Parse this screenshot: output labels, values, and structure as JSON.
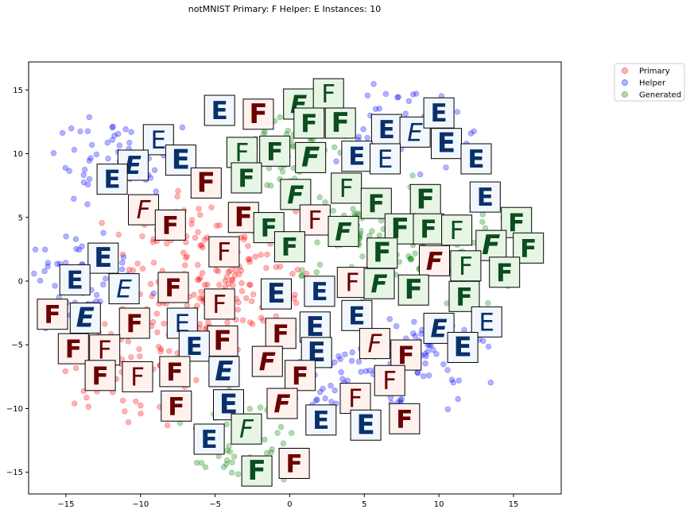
{
  "chart_data": {
    "type": "scatter",
    "title": "notMNIST Primary: F Helper: E Instances: 10",
    "xlabel": "",
    "ylabel": "",
    "xlim": [
      -17.5,
      18.2
    ],
    "ylim": [
      -16.7,
      17.2
    ],
    "xticks": [
      -15,
      -10,
      -5,
      0,
      5,
      10,
      15
    ],
    "yticks": [
      15,
      10,
      5,
      0,
      -5,
      -10,
      -15
    ],
    "grid": false,
    "legend_position": "outside-top-right",
    "colors": {
      "Primary": "#ff0000",
      "Helper": "#0000ff",
      "Generated": "#008000"
    },
    "thumbnail_colors": {
      "Primary": "#6b0000",
      "Helper": "#08306b",
      "Generated": "#0b4d1e"
    },
    "series": [
      {
        "name": "Primary",
        "cluster_centers": [
          [
            -8,
            -3
          ],
          [
            -5,
            -1
          ],
          [
            -2,
            0
          ],
          [
            -7,
            4
          ],
          [
            -11,
            -7
          ]
        ]
      },
      {
        "name": "Helper",
        "cluster_centers": [
          [
            -12,
            9
          ],
          [
            -14,
            0
          ],
          [
            9,
            -6
          ],
          [
            8,
            12
          ],
          [
            4,
            -8
          ]
        ]
      },
      {
        "name": "Generated",
        "cluster_centers": [
          [
            0,
            10
          ],
          [
            4,
            4
          ],
          [
            8,
            3
          ],
          [
            12,
            2
          ],
          [
            -3,
            -12
          ]
        ]
      }
    ],
    "thumbnails": [
      {
        "g": "E",
        "cls": "Helper",
        "x": -4.7,
        "y": 13.4
      },
      {
        "g": "F",
        "cls": "Primary",
        "x": -2.1,
        "y": 13.1
      },
      {
        "g": "F",
        "cls": "Generated",
        "x": 0.6,
        "y": 13.9
      },
      {
        "g": "F",
        "cls": "Generated",
        "x": 2.6,
        "y": 14.7
      },
      {
        "g": "F",
        "cls": "Generated",
        "x": 1.3,
        "y": 12.4
      },
      {
        "g": "F",
        "cls": "Generated",
        "x": 3.4,
        "y": 12.4
      },
      {
        "g": "E",
        "cls": "Helper",
        "x": 6.5,
        "y": 11.9
      },
      {
        "g": "E",
        "cls": "Helper",
        "x": 8.4,
        "y": 11.7
      },
      {
        "g": "E",
        "cls": "Helper",
        "x": 10.0,
        "y": 13.2
      },
      {
        "g": "E",
        "cls": "Helper",
        "x": 10.5,
        "y": 10.8
      },
      {
        "g": "E",
        "cls": "Helper",
        "x": 12.5,
        "y": 9.6
      },
      {
        "g": "E",
        "cls": "Helper",
        "x": -8.8,
        "y": 11.1
      },
      {
        "g": "E",
        "cls": "Helper",
        "x": -10.5,
        "y": 9.1
      },
      {
        "g": "E",
        "cls": "Helper",
        "x": -7.3,
        "y": 9.5
      },
      {
        "g": "E",
        "cls": "Helper",
        "x": -11.9,
        "y": 8.0
      },
      {
        "g": "F",
        "cls": "Generated",
        "x": -3.2,
        "y": 10.1
      },
      {
        "g": "F",
        "cls": "Generated",
        "x": -1.0,
        "y": 10.2
      },
      {
        "g": "F",
        "cls": "Generated",
        "x": 1.4,
        "y": 9.7
      },
      {
        "g": "E",
        "cls": "Helper",
        "x": 4.5,
        "y": 9.8
      },
      {
        "g": "E",
        "cls": "Helper",
        "x": 6.4,
        "y": 9.6
      },
      {
        "g": "F",
        "cls": "Generated",
        "x": -2.9,
        "y": 8.1
      },
      {
        "g": "F",
        "cls": "Primary",
        "x": -5.6,
        "y": 7.7
      },
      {
        "g": "F",
        "cls": "Generated",
        "x": 0.4,
        "y": 6.8
      },
      {
        "g": "F",
        "cls": "Generated",
        "x": 3.8,
        "y": 7.3
      },
      {
        "g": "F",
        "cls": "Generated",
        "x": 5.8,
        "y": 6.1
      },
      {
        "g": "F",
        "cls": "Generated",
        "x": 9.1,
        "y": 6.4
      },
      {
        "g": "E",
        "cls": "Helper",
        "x": 13.1,
        "y": 6.6
      },
      {
        "g": "F",
        "cls": "Primary",
        "x": -9.8,
        "y": 5.6
      },
      {
        "g": "F",
        "cls": "Primary",
        "x": -8.0,
        "y": 4.4
      },
      {
        "g": "F",
        "cls": "Primary",
        "x": -3.1,
        "y": 5.0
      },
      {
        "g": "F",
        "cls": "Generated",
        "x": -1.4,
        "y": 4.2
      },
      {
        "g": "F",
        "cls": "Primary",
        "x": 1.7,
        "y": 4.8
      },
      {
        "g": "F",
        "cls": "Generated",
        "x": 3.6,
        "y": 3.9
      },
      {
        "g": "F",
        "cls": "Generated",
        "x": 7.4,
        "y": 4.1
      },
      {
        "g": "F",
        "cls": "Generated",
        "x": 9.3,
        "y": 4.1
      },
      {
        "g": "F",
        "cls": "Generated",
        "x": 11.2,
        "y": 4.0
      },
      {
        "g": "F",
        "cls": "Generated",
        "x": 15.2,
        "y": 4.6
      },
      {
        "g": "F",
        "cls": "Generated",
        "x": 13.5,
        "y": 2.8
      },
      {
        "g": "F",
        "cls": "Generated",
        "x": 16.0,
        "y": 2.6
      },
      {
        "g": "F",
        "cls": "Primary",
        "x": -4.4,
        "y": 2.3
      },
      {
        "g": "F",
        "cls": "Generated",
        "x": 0.0,
        "y": 2.7
      },
      {
        "g": "F",
        "cls": "Generated",
        "x": 6.2,
        "y": 2.2
      },
      {
        "g": "F",
        "cls": "Primary",
        "x": 9.7,
        "y": 1.6
      },
      {
        "g": "F",
        "cls": "Generated",
        "x": 11.8,
        "y": 1.2
      },
      {
        "g": "F",
        "cls": "Generated",
        "x": 14.4,
        "y": 0.7
      },
      {
        "g": "E",
        "cls": "Helper",
        "x": -12.5,
        "y": 1.8
      },
      {
        "g": "E",
        "cls": "Helper",
        "x": -14.4,
        "y": 0.1
      },
      {
        "g": "E",
        "cls": "Helper",
        "x": -11.1,
        "y": -0.6
      },
      {
        "g": "F",
        "cls": "Primary",
        "x": -7.8,
        "y": -0.5
      },
      {
        "g": "E",
        "cls": "Helper",
        "x": -0.9,
        "y": -1.0
      },
      {
        "g": "E",
        "cls": "Helper",
        "x": 2.0,
        "y": -0.8
      },
      {
        "g": "F",
        "cls": "Primary",
        "x": 4.2,
        "y": -0.1
      },
      {
        "g": "F",
        "cls": "Generated",
        "x": 6.0,
        "y": -0.2
      },
      {
        "g": "F",
        "cls": "Generated",
        "x": 8.3,
        "y": -0.7
      },
      {
        "g": "F",
        "cls": "Generated",
        "x": 11.7,
        "y": -1.2
      },
      {
        "g": "F",
        "cls": "Primary",
        "x": -4.7,
        "y": -1.8
      },
      {
        "g": "F",
        "cls": "Primary",
        "x": -15.9,
        "y": -2.6
      },
      {
        "g": "E",
        "cls": "Helper",
        "x": -13.7,
        "y": -2.9
      },
      {
        "g": "F",
        "cls": "Primary",
        "x": -10.4,
        "y": -3.3
      },
      {
        "g": "E",
        "cls": "Helper",
        "x": -7.2,
        "y": -3.3
      },
      {
        "g": "E",
        "cls": "Helper",
        "x": 4.5,
        "y": -2.7
      },
      {
        "g": "E",
        "cls": "Helper",
        "x": 1.7,
        "y": -3.6
      },
      {
        "g": "E",
        "cls": "Helper",
        "x": 10.0,
        "y": -3.7
      },
      {
        "g": "E",
        "cls": "Helper",
        "x": 13.2,
        "y": -3.2
      },
      {
        "g": "F",
        "cls": "Primary",
        "x": -0.6,
        "y": -4.1
      },
      {
        "g": "F",
        "cls": "Primary",
        "x": -4.5,
        "y": -4.7
      },
      {
        "g": "E",
        "cls": "Helper",
        "x": -6.4,
        "y": -5.1
      },
      {
        "g": "F",
        "cls": "Primary",
        "x": 5.7,
        "y": -4.9
      },
      {
        "g": "F",
        "cls": "Primary",
        "x": 7.8,
        "y": -5.8
      },
      {
        "g": "E",
        "cls": "Helper",
        "x": 11.6,
        "y": -5.2
      },
      {
        "g": "F",
        "cls": "Primary",
        "x": -14.5,
        "y": -5.3
      },
      {
        "g": "F",
        "cls": "Primary",
        "x": -12.4,
        "y": -5.4
      },
      {
        "g": "F",
        "cls": "Primary",
        "x": -1.5,
        "y": -6.3
      },
      {
        "g": "E",
        "cls": "Helper",
        "x": 1.8,
        "y": -5.6
      },
      {
        "g": "F",
        "cls": "Primary",
        "x": -12.7,
        "y": -7.4
      },
      {
        "g": "F",
        "cls": "Primary",
        "x": -10.2,
        "y": -7.5
      },
      {
        "g": "F",
        "cls": "Primary",
        "x": -7.7,
        "y": -7.1
      },
      {
        "g": "E",
        "cls": "Helper",
        "x": -4.4,
        "y": -7.1
      },
      {
        "g": "F",
        "cls": "Primary",
        "x": 0.7,
        "y": -7.4
      },
      {
        "g": "F",
        "cls": "Primary",
        "x": 6.7,
        "y": -7.8
      },
      {
        "g": "F",
        "cls": "Primary",
        "x": -7.6,
        "y": -9.8
      },
      {
        "g": "E",
        "cls": "Helper",
        "x": -4.1,
        "y": -9.7
      },
      {
        "g": "F",
        "cls": "Primary",
        "x": -0.5,
        "y": -9.6
      },
      {
        "g": "F",
        "cls": "Primary",
        "x": 4.4,
        "y": -9.2
      },
      {
        "g": "E",
        "cls": "Helper",
        "x": 2.1,
        "y": -10.9
      },
      {
        "g": "E",
        "cls": "Helper",
        "x": 5.1,
        "y": -11.3
      },
      {
        "g": "F",
        "cls": "Primary",
        "x": 7.7,
        "y": -10.8
      },
      {
        "g": "F",
        "cls": "Generated",
        "x": -2.9,
        "y": -11.6
      },
      {
        "g": "E",
        "cls": "Helper",
        "x": -5.4,
        "y": -12.4
      },
      {
        "g": "F",
        "cls": "Generated",
        "x": -2.2,
        "y": -14.9
      },
      {
        "g": "F",
        "cls": "Primary",
        "x": 0.3,
        "y": -14.3
      }
    ]
  },
  "legend": {
    "items": [
      {
        "label": "Primary",
        "color": "#ff0000"
      },
      {
        "label": "Helper",
        "color": "#0000ff"
      },
      {
        "label": "Generated",
        "color": "#008000"
      }
    ]
  }
}
